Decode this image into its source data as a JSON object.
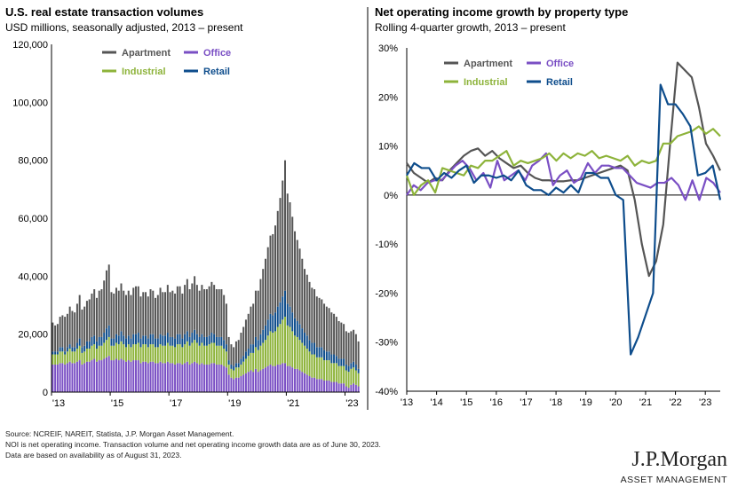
{
  "left": {
    "title": "U.S. real estate transaction volumes",
    "subtitle": "USD millions, seasonally adjusted, 2013 – present"
  },
  "right": {
    "title": "Net operating income growth by property type",
    "subtitle": "Rolling 4-quarter growth, 2013 – present"
  },
  "footer": {
    "line1": "Source: NCREIF, NAREIT, Statista, J.P. Morgan Asset Management.",
    "line2": "NOI is net operating income. Transaction volume and net operating income growth data are as of June 30, 2023.",
    "line3": "Data are based on availability as of August 31, 2023."
  },
  "logo": {
    "name": "J.P.Morgan",
    "sub": "ASSET MANAGEMENT"
  },
  "colors": {
    "apartment": "#555555",
    "office": "#7a4fc4",
    "industrial": "#8db33a",
    "retail": "#0e4d8c"
  },
  "chart_data": [
    {
      "type": "bar",
      "stacked": true,
      "x_ticks": [
        "'13",
        "'15",
        "'17",
        "'19",
        "'21",
        "'23"
      ],
      "y_ticks": [
        "0",
        "20,000",
        "40,000",
        "60,000",
        "80,000",
        "100,000",
        "120,000"
      ],
      "ylim": [
        0,
        120000
      ],
      "legend": [
        "Apartment",
        "Office",
        "Industrial",
        "Retail"
      ],
      "legend_position": "top",
      "start": "2013-01",
      "frequency": "monthly",
      "series": [
        {
          "name": "Office",
          "values": [
            9500,
            9500,
            9500,
            10000,
            10000,
            9500,
            10000,
            10500,
            10000,
            10000,
            10500,
            11000,
            9500,
            10000,
            10500,
            10500,
            11000,
            11500,
            10500,
            11000,
            11000,
            11500,
            12000,
            12500,
            11000,
            11000,
            11500,
            11000,
            11500,
            11000,
            10500,
            11000,
            10500,
            11000,
            11000,
            11000,
            10000,
            10500,
            10500,
            10000,
            10500,
            10500,
            10000,
            10000,
            10500,
            10000,
            10000,
            10500,
            10000,
            10000,
            9500,
            10000,
            10000,
            9500,
            10000,
            10500,
            9500,
            10000,
            10500,
            10000,
            9500,
            10000,
            9500,
            9500,
            9500,
            10000,
            10000,
            9500,
            9500,
            9500,
            9000,
            8500,
            6000,
            5000,
            4500,
            5000,
            5000,
            5500,
            6000,
            6500,
            7000,
            7500,
            7000,
            8000,
            7000,
            7500,
            8000,
            8500,
            9000,
            9500,
            9000,
            9000,
            9500,
            9500,
            10000,
            10000,
            9000,
            9000,
            8500,
            8000,
            8000,
            7500,
            7000,
            6500,
            6000,
            5500,
            5000,
            5000,
            4500,
            4500,
            4500,
            4000,
            4000,
            4000,
            3500,
            3500,
            3500,
            3000,
            3000,
            3000,
            2000,
            1500,
            2500,
            3000,
            2500,
            2000
          ]
        },
        {
          "name": "Industrial",
          "values": [
            3500,
            3500,
            3500,
            4000,
            4000,
            3500,
            4000,
            4500,
            4000,
            4000,
            4500,
            5000,
            4000,
            4000,
            4500,
            4500,
            5000,
            5000,
            4500,
            5000,
            5000,
            5500,
            6000,
            6500,
            5000,
            5000,
            5500,
            5500,
            6000,
            5500,
            5000,
            5500,
            5000,
            5500,
            5500,
            6000,
            5500,
            6000,
            6000,
            5500,
            6000,
            6000,
            5500,
            5500,
            6000,
            6000,
            6000,
            6500,
            6000,
            6000,
            6000,
            6500,
            6500,
            6000,
            6500,
            7000,
            6500,
            7000,
            7500,
            7000,
            6500,
            7000,
            6500,
            6500,
            7000,
            7000,
            7000,
            6500,
            6500,
            6500,
            6000,
            5500,
            3500,
            3000,
            3000,
            3500,
            3500,
            4000,
            4500,
            5000,
            5500,
            6000,
            6500,
            7500,
            7500,
            8500,
            9000,
            9500,
            10500,
            11500,
            11500,
            12000,
            13000,
            14000,
            15000,
            16000,
            14000,
            13500,
            12500,
            11500,
            11000,
            10500,
            10000,
            9500,
            9000,
            8500,
            8000,
            8000,
            7500,
            7500,
            7500,
            7000,
            7000,
            7000,
            6500,
            6500,
            6500,
            6000,
            6000,
            6000,
            5500,
            5500,
            5500,
            5500,
            5000,
            4500
          ]
        },
        {
          "name": "Retail",
          "values": [
            1000,
            1000,
            1000,
            1500,
            1500,
            1000,
            1500,
            1500,
            1500,
            1500,
            2000,
            2500,
            2000,
            2000,
            2500,
            2500,
            3000,
            3000,
            2500,
            3000,
            3000,
            3500,
            4000,
            4000,
            2500,
            2500,
            3000,
            3000,
            3500,
            3000,
            3000,
            3000,
            3000,
            3500,
            3500,
            3500,
            3000,
            3000,
            3000,
            3000,
            3500,
            3500,
            3000,
            3000,
            3500,
            3500,
            3500,
            3500,
            3000,
            3000,
            3000,
            3500,
            3500,
            3000,
            3500,
            3500,
            3000,
            3500,
            3500,
            3000,
            3000,
            3000,
            3000,
            3000,
            3000,
            3500,
            3000,
            3000,
            3000,
            3000,
            3000,
            2500,
            1500,
            1500,
            1500,
            1500,
            1500,
            2000,
            2000,
            2500,
            2500,
            3000,
            3000,
            3500,
            3500,
            4000,
            4500,
            5000,
            5500,
            6000,
            6000,
            6500,
            7000,
            7500,
            8000,
            9000,
            7500,
            7000,
            6500,
            6000,
            5500,
            5500,
            5000,
            4500,
            4500,
            4000,
            4000,
            4000,
            3500,
            3500,
            3500,
            3500,
            3000,
            3000,
            3000,
            3000,
            2500,
            2500,
            2500,
            2500,
            2000,
            2000,
            2000,
            2000,
            2000,
            1500
          ]
        },
        {
          "name": "Apartment",
          "values": [
            10000,
            9000,
            9500,
            10500,
            11000,
            12000,
            11500,
            13000,
            12500,
            12000,
            13500,
            15000,
            13000,
            13500,
            14000,
            14500,
            15000,
            16000,
            15000,
            16000,
            16500,
            18000,
            20000,
            21000,
            16000,
            15500,
            16000,
            15500,
            16500,
            15500,
            15000,
            15500,
            15000,
            16000,
            16500,
            16000,
            14500,
            15000,
            15000,
            14500,
            15500,
            15000,
            14000,
            15000,
            16000,
            15000,
            15000,
            16500,
            15500,
            16000,
            15500,
            16500,
            16500,
            15500,
            17000,
            18000,
            16500,
            17000,
            18500,
            17000,
            16000,
            17000,
            16500,
            16500,
            17000,
            17500,
            17000,
            16500,
            16500,
            16500,
            15500,
            14000,
            8000,
            7000,
            6500,
            7500,
            8000,
            9000,
            10000,
            11000,
            12000,
            13000,
            14000,
            16000,
            17000,
            19000,
            21000,
            23000,
            25000,
            27000,
            28000,
            30000,
            33000,
            36000,
            40000,
            45000,
            38000,
            36000,
            33000,
            30000,
            28000,
            26000,
            24000,
            22000,
            21000,
            20000,
            19000,
            18500,
            17500,
            17000,
            16500,
            16000,
            15500,
            15000,
            14500,
            14000,
            13500,
            13000,
            12500,
            12000,
            11500,
            11500,
            11000,
            11000,
            10500,
            9500
          ]
        }
      ]
    },
    {
      "type": "line",
      "x_ticks": [
        "'13",
        "'14",
        "'15",
        "'16",
        "'17",
        "'18",
        "'19",
        "'20",
        "'21",
        "'22",
        "'23"
      ],
      "y_ticks": [
        "-40%",
        "-30%",
        "-20%",
        "-10%",
        "0%",
        "10%",
        "20%",
        "30%"
      ],
      "ylim": [
        -40,
        30
      ],
      "unit": "%",
      "legend": [
        "Apartment",
        "Office",
        "Industrial",
        "Retail"
      ],
      "legend_position": "top-left",
      "x_start": "2013-Q1",
      "frequency": "quarterly",
      "series": [
        {
          "name": "Apartment",
          "values": [
            6.5,
            4.5,
            3.5,
            2.5,
            3.5,
            3,
            5,
            6.5,
            8,
            9,
            9.5,
            8,
            9,
            7.5,
            6.5,
            5.5,
            6,
            4.5,
            3.5,
            3,
            3,
            2.8,
            2.8,
            3,
            3,
            3.5,
            4,
            4.5,
            5,
            5.5,
            6,
            5,
            -1,
            -10,
            -16.5,
            -13.5,
            -6,
            11,
            27,
            25.5,
            24,
            18,
            10.5,
            8,
            5
          ]
        },
        {
          "name": "Office",
          "values": [
            0,
            2,
            1,
            2.5,
            3,
            3,
            4.5,
            6,
            7,
            5.5,
            3,
            4.5,
            1.5,
            7,
            3,
            4,
            5,
            3,
            6,
            7,
            8.5,
            2,
            4,
            5,
            2.5,
            3.5,
            6.5,
            4.5,
            6,
            6,
            5.5,
            5.5,
            4,
            2.5,
            2,
            1.5,
            2.5,
            2.5,
            3.5,
            2,
            -1,
            3,
            -1,
            3.5,
            2.5,
            0.5
          ]
        },
        {
          "name": "Industrial",
          "values": [
            4,
            0,
            2,
            3,
            0.5,
            5.5,
            5,
            4.5,
            4,
            6,
            5.5,
            7,
            7,
            8,
            9,
            6,
            7,
            6.5,
            7,
            7.5,
            8.5,
            7,
            8.5,
            7.5,
            8.5,
            8,
            9,
            7.5,
            8,
            7.5,
            7,
            8,
            6,
            7,
            6.5,
            7,
            10.5,
            10.5,
            12,
            12.5,
            13,
            14,
            12.5,
            13.5,
            12
          ]
        },
        {
          "name": "Retail",
          "values": [
            4,
            6.5,
            5.5,
            5.5,
            3,
            4.5,
            3.5,
            5,
            6,
            2.5,
            4,
            4,
            3.5,
            4,
            3,
            5,
            2,
            1,
            1,
            0,
            1.5,
            0.5,
            2,
            0.5,
            4.5,
            4.5,
            3.5,
            3.5,
            0,
            -1,
            -32.5,
            -29,
            -24.5,
            -20,
            22.5,
            18.5,
            18.5,
            16.5,
            14,
            4,
            4.5,
            6,
            -1
          ]
        }
      ]
    }
  ]
}
